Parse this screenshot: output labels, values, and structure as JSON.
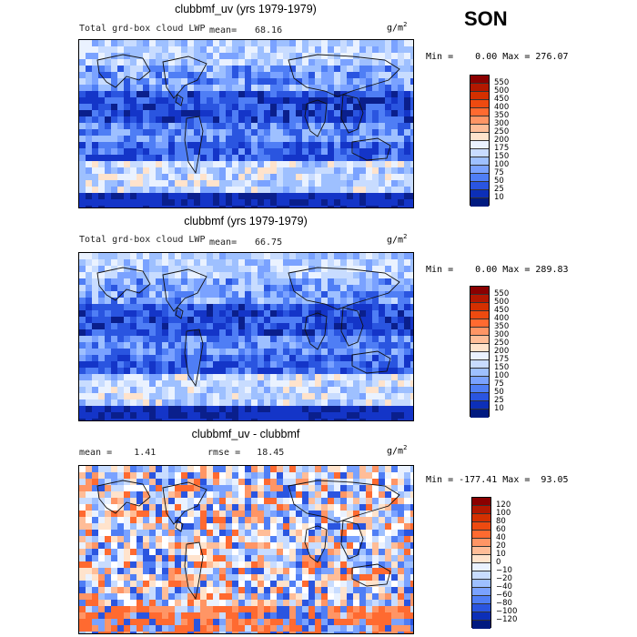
{
  "season": "SON",
  "units": {
    "text": "g/m",
    "sup": "2"
  },
  "panels": [
    {
      "title": "clubbmf_uv (yrs 1979-1979)",
      "field": "Total grd-box cloud LWP",
      "mean_label": "mean=",
      "mean": "68.16",
      "minmax": "Min =    0.00 Max = 276.07",
      "colorbar": {
        "levels": [
          "550",
          "500",
          "450",
          "400",
          "350",
          "300",
          "250",
          "200",
          "175",
          "150",
          "100",
          "75",
          "50",
          "25",
          "10"
        ],
        "colors": [
          "#8b0000",
          "#b31800",
          "#d43000",
          "#ee4a10",
          "#ff6a30",
          "#ff9565",
          "#ffbd98",
          "#ffe3cc",
          "#eaf2ff",
          "#c8dcff",
          "#9ec0ff",
          "#7aa2ff",
          "#4f7ef5",
          "#2a55e0",
          "#0c2fb8",
          "#001a80"
        ]
      }
    },
    {
      "title": "clubbmf (yrs 1979-1979)",
      "field": "Total grd-box cloud LWP",
      "mean_label": "mean=",
      "mean": "66.75",
      "minmax": "Min =    0.00 Max = 289.83",
      "colorbar": {
        "levels": [
          "550",
          "500",
          "450",
          "400",
          "350",
          "300",
          "250",
          "200",
          "175",
          "150",
          "100",
          "75",
          "50",
          "25",
          "10"
        ],
        "colors": [
          "#8b0000",
          "#b31800",
          "#d43000",
          "#ee4a10",
          "#ff6a30",
          "#ff9565",
          "#ffbd98",
          "#ffe3cc",
          "#eaf2ff",
          "#c8dcff",
          "#9ec0ff",
          "#7aa2ff",
          "#4f7ef5",
          "#2a55e0",
          "#0c2fb8",
          "#001a80"
        ]
      }
    },
    {
      "title": "clubbmf_uv - clubbmf",
      "mean_text": "mean =    1.41",
      "rmse_text": "rmse =   18.45",
      "minmax": "Min = -177.41 Max =  93.05",
      "colorbar": {
        "levels": [
          "120",
          "100",
          "80",
          "60",
          "40",
          "20",
          "10",
          "0",
          "−10",
          "−20",
          "−40",
          "−60",
          "−80",
          "−100",
          "−120"
        ],
        "colors": [
          "#8b0000",
          "#b31800",
          "#d43000",
          "#ee4a10",
          "#ff6a30",
          "#ff9565",
          "#ffbd98",
          "#ffe3cc",
          "#eaf2ff",
          "#c8dcff",
          "#9ec0ff",
          "#7aa2ff",
          "#4f7ef5",
          "#2a55e0",
          "#0c2fb8",
          "#001a80"
        ]
      }
    }
  ],
  "chart_data": {
    "type": "heatmap",
    "description_kind": "global lat-lon contour maps",
    "panels": [
      {
        "name": "clubbmf_uv (yrs 1979-1979)",
        "mean": 68.16,
        "min": 0.0,
        "max": 276.07
      },
      {
        "name": "clubbmf (yrs 1979-1979)",
        "mean": 66.75,
        "min": 0.0,
        "max": 289.83
      },
      {
        "name": "clubbmf_uv - clubbmf",
        "mean": 1.41,
        "rmse": 18.45,
        "min": -177.41,
        "max": 93.05
      }
    ]
  }
}
